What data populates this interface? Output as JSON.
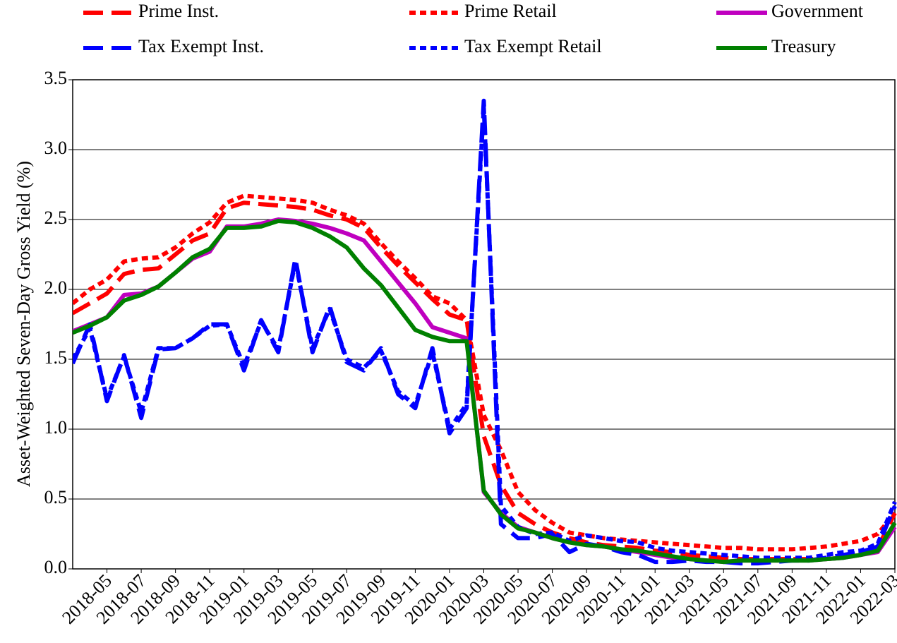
{
  "chart_data": {
    "type": "line",
    "y_label": "Asset-Weighted Seven-Day Gross Yield (%)",
    "x": [
      "2018-03",
      "2018-04",
      "2018-05",
      "2018-06",
      "2018-07",
      "2018-08",
      "2018-09",
      "2018-10",
      "2018-11",
      "2018-12",
      "2019-01",
      "2019-02",
      "2019-03",
      "2019-04",
      "2019-05",
      "2019-06",
      "2019-07",
      "2019-08",
      "2019-09",
      "2019-10",
      "2019-11",
      "2019-12",
      "2020-01",
      "2020-02",
      "2020-03",
      "2020-04",
      "2020-05",
      "2020-06",
      "2020-07",
      "2020-08",
      "2020-09",
      "2020-10",
      "2020-11",
      "2020-12",
      "2021-01",
      "2021-02",
      "2021-03",
      "2021-04",
      "2021-05",
      "2021-06",
      "2021-07",
      "2021-08",
      "2021-09",
      "2021-10",
      "2021-11",
      "2021-12",
      "2022-01",
      "2022-02",
      "2022-03"
    ],
    "xlim": [
      "2018-03",
      "2022-03"
    ],
    "xticks": [
      "2018-05",
      "2018-07",
      "2018-09",
      "2018-11",
      "2019-01",
      "2019-03",
      "2019-05",
      "2019-07",
      "2019-09",
      "2019-11",
      "2020-01",
      "2020-03",
      "2020-05",
      "2020-07",
      "2020-09",
      "2020-11",
      "2021-01",
      "2021-03",
      "2021-05",
      "2021-07",
      "2021-09",
      "2021-11",
      "2022-01",
      "2022-03"
    ],
    "ylim": [
      0,
      3.5
    ],
    "yticks": [
      {
        "value": 0,
        "label": "0.0"
      },
      {
        "value": 0.5,
        "label": "0.5"
      },
      {
        "value": 1,
        "label": "1.0"
      },
      {
        "value": 1.5,
        "label": "1.5"
      },
      {
        "value": 2,
        "label": "2.0"
      },
      {
        "value": 2.5,
        "label": "2.5"
      },
      {
        "value": 3,
        "label": "3.0"
      },
      {
        "value": 3.5,
        "label": "3.5"
      }
    ],
    "grid": true,
    "legend": "top",
    "series": [
      {
        "name": "Prime Inst.",
        "color": "#ff0000",
        "style": "dashed",
        "values": [
          1.83,
          1.9,
          1.97,
          2.11,
          2.14,
          2.15,
          2.25,
          2.35,
          2.4,
          2.58,
          2.62,
          2.61,
          2.6,
          2.59,
          2.57,
          2.53,
          2.5,
          2.44,
          2.3,
          2.17,
          2.05,
          1.93,
          1.82,
          1.78,
          0.95,
          0.6,
          0.4,
          0.32,
          0.26,
          0.22,
          0.19,
          0.17,
          0.16,
          0.15,
          0.13,
          0.12,
          0.1,
          0.09,
          0.08,
          0.07,
          0.07,
          0.07,
          0.07,
          0.07,
          0.07,
          0.08,
          0.1,
          0.15,
          0.4
        ]
      },
      {
        "name": "Prime Retail",
        "color": "#ff0000",
        "style": "dotted",
        "values": [
          1.9,
          2.0,
          2.07,
          2.2,
          2.22,
          2.23,
          2.3,
          2.4,
          2.48,
          2.62,
          2.67,
          2.66,
          2.65,
          2.64,
          2.62,
          2.57,
          2.53,
          2.47,
          2.33,
          2.2,
          2.08,
          1.95,
          1.9,
          1.78,
          1.1,
          0.85,
          0.55,
          0.42,
          0.33,
          0.26,
          0.24,
          0.22,
          0.21,
          0.2,
          0.19,
          0.18,
          0.17,
          0.16,
          0.15,
          0.15,
          0.14,
          0.14,
          0.14,
          0.15,
          0.16,
          0.18,
          0.2,
          0.25,
          0.4
        ]
      },
      {
        "name": "Government",
        "color": "#bf00bf",
        "style": "solid",
        "values": [
          1.7,
          1.75,
          1.8,
          1.96,
          1.97,
          2.02,
          2.12,
          2.22,
          2.27,
          2.45,
          2.45,
          2.47,
          2.5,
          2.49,
          2.47,
          2.44,
          2.4,
          2.35,
          2.2,
          2.05,
          1.9,
          1.73,
          1.69,
          1.65,
          0.55,
          0.4,
          0.3,
          0.26,
          0.22,
          0.19,
          0.17,
          0.16,
          0.14,
          0.12,
          0.1,
          0.08,
          0.07,
          0.06,
          0.05,
          0.06,
          0.06,
          0.06,
          0.06,
          0.06,
          0.07,
          0.08,
          0.1,
          0.12,
          0.3
        ]
      },
      {
        "name": "Tax Exempt Inst.",
        "color": "#0000ff",
        "style": "dashed",
        "values": [
          1.47,
          1.75,
          1.2,
          1.53,
          1.08,
          1.57,
          1.58,
          1.65,
          1.75,
          1.75,
          1.42,
          1.78,
          1.55,
          2.22,
          1.55,
          1.88,
          1.48,
          1.42,
          1.58,
          1.25,
          1.15,
          1.58,
          0.97,
          1.15,
          3.35,
          0.32,
          0.22,
          0.22,
          0.25,
          0.12,
          0.18,
          0.16,
          0.12,
          0.1,
          0.05,
          0.05,
          0.06,
          0.05,
          0.05,
          0.04,
          0.04,
          0.05,
          0.06,
          0.06,
          0.08,
          0.1,
          0.12,
          0.16,
          0.45
        ]
      },
      {
        "name": "Tax Exempt Retail",
        "color": "#0000ff",
        "style": "dotted",
        "values": [
          1.5,
          1.72,
          1.22,
          1.52,
          1.12,
          1.58,
          1.58,
          1.65,
          1.74,
          1.75,
          1.45,
          1.77,
          1.57,
          2.2,
          1.58,
          1.86,
          1.5,
          1.44,
          1.56,
          1.27,
          1.17,
          1.55,
          1.0,
          1.18,
          3.3,
          0.45,
          0.3,
          0.25,
          0.26,
          0.2,
          0.24,
          0.22,
          0.2,
          0.19,
          0.15,
          0.13,
          0.12,
          0.11,
          0.1,
          0.09,
          0.08,
          0.08,
          0.08,
          0.08,
          0.1,
          0.12,
          0.13,
          0.18,
          0.48
        ]
      },
      {
        "name": "Treasury",
        "color": "#008000",
        "style": "solid",
        "values": [
          1.69,
          1.74,
          1.8,
          1.92,
          1.96,
          2.02,
          2.12,
          2.23,
          2.29,
          2.44,
          2.44,
          2.45,
          2.49,
          2.48,
          2.44,
          2.38,
          2.3,
          2.15,
          2.03,
          1.87,
          1.71,
          1.66,
          1.63,
          1.63,
          0.56,
          0.39,
          0.29,
          0.26,
          0.22,
          0.19,
          0.17,
          0.16,
          0.14,
          0.13,
          0.11,
          0.09,
          0.07,
          0.06,
          0.05,
          0.06,
          0.06,
          0.06,
          0.06,
          0.06,
          0.07,
          0.08,
          0.1,
          0.13,
          0.33
        ]
      }
    ]
  }
}
